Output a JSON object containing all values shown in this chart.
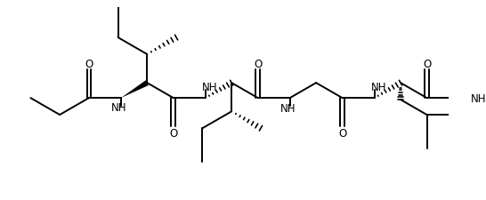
{
  "background": "#ffffff",
  "line_color": "#000000",
  "line_width": 1.4,
  "font_size": 8.5,
  "fig_width": 5.46,
  "fig_height": 2.26,
  "dpi": 100,
  "xlim": [
    0,
    10.92
  ],
  "ylim": [
    0,
    4.52
  ]
}
